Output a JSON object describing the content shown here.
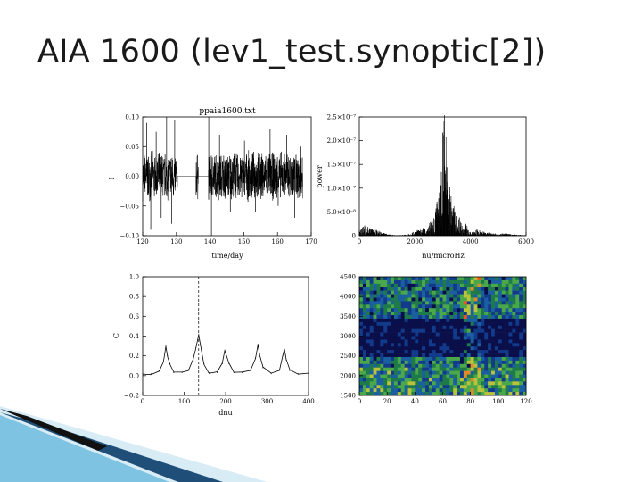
{
  "slide": {
    "title": "AIA 1600 (lev1_test.synoptic[2])"
  },
  "chart_data": [
    {
      "type": "line",
      "title": "ppaia1600.txt",
      "xlabel": "time/day",
      "ylabel": "I",
      "xlim": [
        120,
        170
      ],
      "ylim": [
        -0.1,
        0.1
      ],
      "xticks": [
        "120",
        "130",
        "140",
        "150",
        "160",
        "170"
      ],
      "yticks": [
        "0.10",
        "0.05",
        "0.00",
        "−0.05",
        "−0.10"
      ],
      "description_series": {
        "data_gaps_days": [
          [
            130.3,
            135.8
          ],
          [
            136.5,
            139.5
          ]
        ],
        "noise_amplitude": 0.04,
        "spikes": [
          {
            "x": 121.2,
            "y": 0.09
          },
          {
            "x": 122.4,
            "y": -0.09
          },
          {
            "x": 124.0,
            "y": 0.075
          },
          {
            "x": 125.5,
            "y": -0.07
          },
          {
            "x": 127.1,
            "y": 0.1
          },
          {
            "x": 128.6,
            "y": -0.08
          },
          {
            "x": 129.5,
            "y": 0.095
          },
          {
            "x": 139.6,
            "y": 0.1
          },
          {
            "x": 140.4,
            "y": -0.1
          },
          {
            "x": 142.8,
            "y": 0.07
          },
          {
            "x": 146.0,
            "y": -0.06
          },
          {
            "x": 150.2,
            "y": 0.06
          },
          {
            "x": 153.5,
            "y": -0.06
          },
          {
            "x": 157.8,
            "y": 0.08
          },
          {
            "x": 160.2,
            "y": -0.05
          },
          {
            "x": 162.7,
            "y": 0.07
          },
          {
            "x": 165.1,
            "y": -0.07
          },
          {
            "x": 167.0,
            "y": 0.05
          }
        ]
      }
    },
    {
      "type": "line",
      "xlabel": "nu/microHz",
      "ylabel": "power",
      "xlim": [
        0,
        6000
      ],
      "ylim": [
        0,
        2.6e-07
      ],
      "xticks": [
        "0",
        "2000",
        "4000",
        "6000"
      ],
      "yticks": [
        "0",
        "5.0×10⁻⁸",
        "1.0×10⁻⁷",
        "1.5×10⁻⁷",
        "2.0×10⁻⁷",
        "2.5×10⁻⁷"
      ],
      "peaks": [
        {
          "x": 200,
          "y": 2e-08
        },
        {
          "x": 500,
          "y": 1.2e-08
        },
        {
          "x": 2300,
          "y": 1.5e-08
        },
        {
          "x": 2600,
          "y": 3e-08
        },
        {
          "x": 2800,
          "y": 7e-08
        },
        {
          "x": 2950,
          "y": 1.1e-07
        },
        {
          "x": 3050,
          "y": 2.5e-07
        },
        {
          "x": 3150,
          "y": 1.5e-07
        },
        {
          "x": 3250,
          "y": 9e-08
        },
        {
          "x": 3400,
          "y": 6e-08
        },
        {
          "x": 3600,
          "y": 4e-08
        },
        {
          "x": 3800,
          "y": 2.5e-08
        },
        {
          "x": 4200,
          "y": 1.2e-08
        },
        {
          "x": 4600,
          "y": 6e-09
        },
        {
          "x": 5200,
          "y": 4e-09
        }
      ]
    },
    {
      "type": "line",
      "xlabel": "dnu",
      "ylabel": "C",
      "xlim": [
        0,
        400
      ],
      "ylim": [
        -0.2,
        1.0
      ],
      "xticks": [
        "0",
        "100",
        "200",
        "300",
        "400"
      ],
      "yticks": [
        "1.0",
        "0.8",
        "0.6",
        "0.4",
        "0.2",
        "0.0",
        "−0.2"
      ],
      "dashed_vline_x": 135,
      "x": [
        0,
        20,
        40,
        50,
        56,
        60,
        66,
        75,
        95,
        110,
        122,
        128,
        135,
        142,
        148,
        160,
        180,
        192,
        198,
        202,
        208,
        220,
        240,
        260,
        272,
        278,
        282,
        290,
        310,
        330,
        338,
        342,
        346,
        355,
        375,
        400
      ],
      "y": [
        0.02,
        0.02,
        0.05,
        0.14,
        0.3,
        0.2,
        0.12,
        0.03,
        0.03,
        0.06,
        0.16,
        0.28,
        0.42,
        0.25,
        0.12,
        0.03,
        0.03,
        0.12,
        0.25,
        0.2,
        0.12,
        0.03,
        0.03,
        0.06,
        0.18,
        0.32,
        0.22,
        0.08,
        0.02,
        0.06,
        0.2,
        0.26,
        0.16,
        0.05,
        0.02,
        0.02
      ]
    },
    {
      "type": "heatmap",
      "xlim": [
        0,
        128
      ],
      "ylim": [
        1500,
        4500
      ],
      "xticks": [
        "0",
        "20",
        "40",
        "60",
        "80",
        "100",
        "120"
      ],
      "yticks": [
        "4500",
        "4000",
        "3500",
        "3000",
        "2500",
        "2000",
        "1500"
      ],
      "colors": {
        "low": "#0a0f4a",
        "mid": "#1f7a4a",
        "high": "#ff5020"
      }
    }
  ]
}
